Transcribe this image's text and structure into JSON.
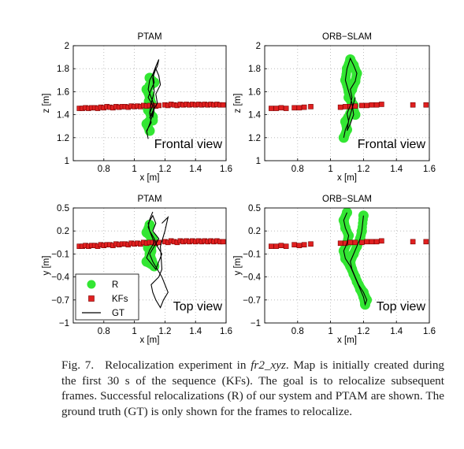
{
  "colors": {
    "relocalization": "#33e633",
    "keyframe": "#e02020",
    "ground_truth": "#000000",
    "grid": "#b0b0b0"
  },
  "chart_data": [
    {
      "type": "scatter",
      "title": "PTAM",
      "xlabel": "x [m]",
      "ylabel": "z [m]",
      "xlim": [
        0.6,
        1.6
      ],
      "ylim": [
        1,
        2
      ],
      "xticks": [
        0.8,
        1,
        1.2,
        1.4,
        1.6
      ],
      "yticks": [
        1,
        1.2,
        1.4,
        1.6,
        1.8,
        2
      ],
      "grid": true,
      "annotation": "Frontal view",
      "series": [
        {
          "name": "KFs",
          "x": [
            0.64,
            0.66,
            0.68,
            0.7,
            0.72,
            0.74,
            0.76,
            0.78,
            0.8,
            0.82,
            0.84,
            0.86,
            0.88,
            0.9,
            0.92,
            0.94,
            0.96,
            0.98,
            1.0,
            1.02,
            1.04,
            1.06,
            1.08,
            1.1,
            1.12,
            1.14,
            1.16,
            1.2,
            1.22,
            1.24,
            1.26,
            1.28,
            1.3,
            1.32,
            1.34,
            1.36,
            1.38,
            1.4,
            1.42,
            1.44,
            1.46,
            1.48,
            1.5,
            1.52,
            1.54,
            1.56,
            1.58
          ],
          "y": [
            1.455,
            1.455,
            1.46,
            1.455,
            1.46,
            1.46,
            1.455,
            1.465,
            1.46,
            1.47,
            1.465,
            1.46,
            1.47,
            1.465,
            1.47,
            1.47,
            1.465,
            1.475,
            1.47,
            1.475,
            1.47,
            1.48,
            1.475,
            1.48,
            1.48,
            1.475,
            1.48,
            1.485,
            1.48,
            1.49,
            1.485,
            1.48,
            1.49,
            1.485,
            1.49,
            1.485,
            1.49,
            1.485,
            1.49,
            1.485,
            1.49,
            1.485,
            1.49,
            1.485,
            1.49,
            1.485,
            1.485
          ]
        },
        {
          "name": "R",
          "x": [
            1.1,
            1.08,
            1.12,
            1.09,
            1.11,
            1.1,
            1.08,
            1.13,
            1.1,
            1.09,
            1.12
          ],
          "y": [
            1.26,
            1.32,
            1.38,
            1.44,
            1.5,
            1.56,
            1.62,
            1.68,
            1.72,
            1.45,
            1.35
          ]
        },
        {
          "name": "GT",
          "x": [
            1.09,
            1.08,
            1.11,
            1.1,
            1.12,
            1.09,
            1.11,
            1.13,
            1.12,
            1.15,
            1.16,
            1.14,
            1.12,
            1.1,
            1.09,
            1.11,
            1.13,
            1.12,
            1.1,
            1.12,
            1.15,
            1.14,
            1.17,
            1.16,
            1.14,
            1.12,
            1.13,
            1.11,
            1.1,
            1.12,
            1.13,
            1.1,
            1.08
          ],
          "y": [
            1.19,
            1.26,
            1.33,
            1.41,
            1.48,
            1.55,
            1.62,
            1.68,
            1.75,
            1.82,
            1.88,
            1.82,
            1.75,
            1.7,
            1.62,
            1.55,
            1.48,
            1.42,
            1.37,
            1.43,
            1.5,
            1.58,
            1.66,
            1.74,
            1.8,
            1.72,
            1.6,
            1.5,
            1.42,
            1.38,
            1.45,
            1.32,
            1.25
          ]
        }
      ]
    },
    {
      "type": "scatter",
      "title": "ORB−SLAM",
      "xlabel": "x [m]",
      "ylabel": "z [m]",
      "xlim": [
        0.6,
        1.6
      ],
      "ylim": [
        1,
        2
      ],
      "xticks": [
        0.8,
        1,
        1.2,
        1.4,
        1.6
      ],
      "yticks": [
        1,
        1.2,
        1.4,
        1.6,
        1.8,
        2
      ],
      "grid": true,
      "annotation": "Frontal view",
      "series": [
        {
          "name": "KFs",
          "x": [
            0.64,
            0.67,
            0.7,
            0.73,
            0.78,
            0.81,
            0.84,
            0.88,
            1.06,
            1.09,
            1.12,
            1.15,
            1.19,
            1.22,
            1.25,
            1.28,
            1.31,
            1.5,
            1.58
          ],
          "y": [
            1.455,
            1.455,
            1.46,
            1.455,
            1.46,
            1.46,
            1.465,
            1.47,
            1.465,
            1.47,
            1.47,
            1.475,
            1.48,
            1.48,
            1.485,
            1.485,
            1.49,
            1.485,
            1.485
          ]
        },
        {
          "name": "R",
          "x": [
            1.08,
            1.1,
            1.09,
            1.12,
            1.14,
            1.11,
            1.13,
            1.15,
            1.16,
            1.14,
            1.12,
            1.1,
            1.09,
            1.11,
            1.13,
            1.15
          ],
          "y": [
            1.2,
            1.27,
            1.34,
            1.41,
            1.48,
            1.55,
            1.62,
            1.69,
            1.76,
            1.83,
            1.88,
            1.8,
            1.7,
            1.6,
            1.5,
            1.4
          ]
        },
        {
          "name": "GT",
          "x": [
            1.08,
            1.09,
            1.11,
            1.1,
            1.12,
            1.13,
            1.12,
            1.15,
            1.16,
            1.14,
            1.12,
            1.1,
            1.09,
            1.11,
            1.13,
            1.14,
            1.12,
            1.1,
            1.11,
            1.13,
            1.15
          ],
          "y": [
            1.2,
            1.27,
            1.34,
            1.41,
            1.48,
            1.55,
            1.62,
            1.69,
            1.76,
            1.83,
            1.89,
            1.8,
            1.7,
            1.6,
            1.5,
            1.4,
            1.32,
            1.26,
            1.35,
            1.45,
            1.55
          ]
        }
      ]
    },
    {
      "type": "scatter",
      "title": "PTAM",
      "xlabel": "x [m]",
      "ylabel": "y [m]",
      "xlim": [
        0.6,
        1.6
      ],
      "ylim": [
        -1,
        0.5
      ],
      "xticks": [
        0.8,
        1,
        1.2,
        1.4,
        1.6
      ],
      "yticks": [
        -1,
        -0.7,
        -0.4,
        -0.1,
        0.2,
        0.5
      ],
      "grid": true,
      "annotation": "Top view",
      "legend": {
        "location": "bottom-left",
        "entries": [
          "R",
          "KFs",
          "GT"
        ]
      },
      "series": [
        {
          "name": "KFs",
          "x": [
            0.64,
            0.66,
            0.68,
            0.7,
            0.72,
            0.74,
            0.76,
            0.78,
            0.8,
            0.82,
            0.84,
            0.86,
            0.88,
            0.9,
            0.92,
            0.94,
            0.96,
            0.98,
            1.0,
            1.02,
            1.04,
            1.06,
            1.08,
            1.1,
            1.12,
            1.14,
            1.16,
            1.2,
            1.22,
            1.24,
            1.26,
            1.28,
            1.3,
            1.32,
            1.34,
            1.36,
            1.38,
            1.4,
            1.42,
            1.44,
            1.46,
            1.48,
            1.5,
            1.52,
            1.54,
            1.56,
            1.58
          ],
          "y": [
            0.0,
            0.0,
            0.01,
            0.0,
            0.01,
            0.01,
            0.0,
            0.02,
            0.01,
            0.02,
            0.02,
            0.01,
            0.03,
            0.02,
            0.03,
            0.03,
            0.02,
            0.04,
            0.03,
            0.04,
            0.03,
            0.05,
            0.04,
            0.05,
            0.05,
            0.04,
            0.05,
            0.06,
            0.05,
            0.07,
            0.06,
            0.05,
            0.07,
            0.06,
            0.07,
            0.06,
            0.07,
            0.06,
            0.07,
            0.06,
            0.07,
            0.06,
            0.07,
            0.06,
            0.07,
            0.06,
            0.06
          ]
        },
        {
          "name": "R",
          "x": [
            1.1,
            1.08,
            1.12,
            1.09,
            1.11,
            1.1,
            1.08,
            1.13,
            1.1,
            1.12,
            1.09
          ],
          "y": [
            0.28,
            0.18,
            0.1,
            0.02,
            -0.06,
            -0.14,
            -0.2,
            -0.26,
            -0.1,
            0.05,
            -0.02
          ]
        },
        {
          "name": "GT",
          "x": [
            1.12,
            1.1,
            1.09,
            1.11,
            1.13,
            1.1,
            1.08,
            1.12,
            1.14,
            1.16,
            1.18,
            1.15,
            1.13,
            1.1,
            1.09,
            1.12,
            1.14,
            1.12,
            1.16,
            1.13,
            1.1,
            1.12,
            1.15,
            1.18,
            1.2,
            1.22,
            1.19,
            1.17,
            1.14,
            1.12,
            1.11,
            1.16,
            1.18,
            1.17,
            1.2,
            1.22,
            1.18
          ],
          "y": [
            0.45,
            0.35,
            0.25,
            0.15,
            0.05,
            -0.05,
            -0.15,
            -0.25,
            -0.3,
            -0.2,
            -0.1,
            0.0,
            0.1,
            0.2,
            0.3,
            0.4,
            0.3,
            0.2,
            0.1,
            0.0,
            -0.1,
            -0.2,
            -0.3,
            -0.4,
            -0.5,
            -0.6,
            -0.7,
            -0.8,
            -0.7,
            -0.6,
            -0.5,
            -0.4,
            -0.3,
            0.0,
            0.2,
            0.38,
            0.3
          ]
        }
      ]
    },
    {
      "type": "scatter",
      "title": "ORB−SLAM",
      "xlabel": "x [m]",
      "ylabel": "y [m]",
      "xlim": [
        0.6,
        1.6
      ],
      "ylim": [
        -1,
        0.5
      ],
      "xticks": [
        0.8,
        1,
        1.2,
        1.4,
        1.6
      ],
      "yticks": [
        -1,
        -0.7,
        -0.4,
        -0.1,
        0.2,
        0.5
      ],
      "grid": true,
      "annotation": "Top view",
      "series": [
        {
          "name": "KFs",
          "x": [
            0.64,
            0.67,
            0.7,
            0.73,
            0.78,
            0.81,
            0.84,
            0.88,
            1.06,
            1.09,
            1.12,
            1.15,
            1.19,
            1.22,
            1.25,
            1.28,
            1.31,
            1.5,
            1.58
          ],
          "y": [
            0.0,
            0.0,
            0.01,
            0.0,
            0.02,
            0.01,
            0.02,
            0.03,
            0.04,
            0.04,
            0.05,
            0.05,
            0.05,
            0.06,
            0.06,
            0.06,
            0.07,
            0.06,
            0.06
          ]
        },
        {
          "name": "R",
          "x": [
            1.1,
            1.08,
            1.09,
            1.11,
            1.1,
            1.08,
            1.09,
            1.12,
            1.14,
            1.16,
            1.18,
            1.2,
            1.21,
            1.22,
            1.2,
            1.17,
            1.15,
            1.13,
            1.12,
            1.14,
            1.16,
            1.18,
            1.19,
            1.2
          ],
          "y": [
            0.44,
            0.34,
            0.24,
            0.14,
            0.04,
            -0.06,
            -0.16,
            -0.26,
            -0.36,
            -0.46,
            -0.56,
            -0.66,
            -0.76,
            -0.7,
            -0.6,
            -0.5,
            -0.4,
            -0.3,
            -0.2,
            -0.1,
            0.0,
            0.1,
            0.2,
            0.4
          ]
        },
        {
          "name": "GT",
          "x": [
            1.1,
            1.08,
            1.09,
            1.11,
            1.1,
            1.08,
            1.09,
            1.12,
            1.14,
            1.16,
            1.18,
            1.2,
            1.21,
            1.22,
            1.2,
            1.17,
            1.15,
            1.13,
            1.12,
            1.14,
            1.16,
            1.18,
            1.19,
            1.2
          ],
          "y": [
            0.44,
            0.34,
            0.24,
            0.14,
            0.04,
            -0.06,
            -0.16,
            -0.26,
            -0.36,
            -0.46,
            -0.56,
            -0.66,
            -0.76,
            -0.7,
            -0.6,
            -0.5,
            -0.4,
            -0.3,
            -0.2,
            -0.1,
            0.0,
            0.1,
            0.2,
            0.4
          ]
        }
      ]
    }
  ],
  "caption": {
    "fig_label": "Fig. 7.",
    "text_1": "Relocalization experiment in ",
    "dataset": "fr2_xyz",
    "text_2": ". Map is initially created during the first 30 s of the sequence (KFs). The goal is to relocalize subsequent frames. Successful relocalizations (R) of our system and PTAM are shown. The ground truth (GT) is only shown for the frames to relocalize."
  }
}
